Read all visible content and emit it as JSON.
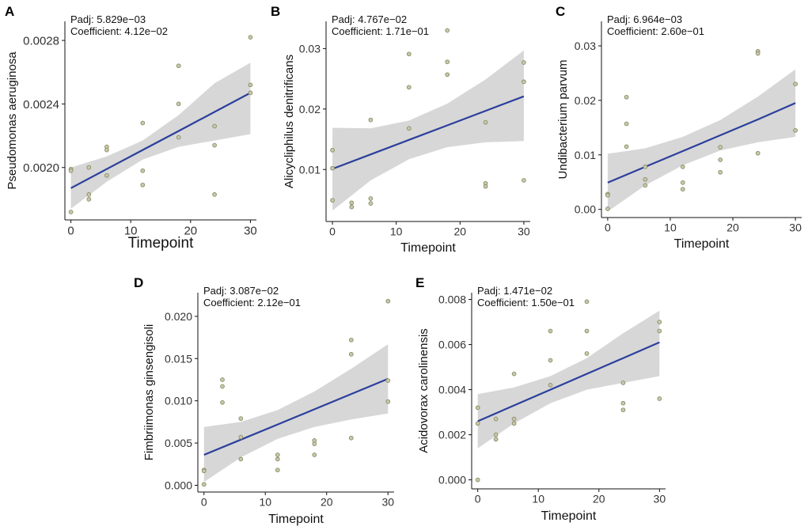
{
  "figure": {
    "colors": {
      "ribbon": "#d3d3d3",
      "line": "#2b3f9c",
      "point_fill": "#c9c9a8",
      "point_stroke": "#8a8a6a",
      "axis": "#111111"
    }
  },
  "chart_data": [
    {
      "panel": "A",
      "type": "scatter",
      "title": "",
      "xlabel": "Timepoint",
      "ylabel": "Pseudomonas aeruginosa",
      "xlim": [
        -1,
        31
      ],
      "ylim": [
        0.00167,
        0.00292
      ],
      "xticks": [
        0,
        10,
        20,
        30
      ],
      "xtick_labels": [
        "0",
        "10",
        "20",
        "30"
      ],
      "yticks": [
        0.002,
        0.0024,
        0.0028
      ],
      "ytick_labels": [
        "0.0020",
        "0.0024",
        "0.0028"
      ],
      "annotations": [
        "Padj: 5.829e−03",
        "Coefficient: 4.12e−02"
      ],
      "points": [
        [
          0,
          0.00199
        ],
        [
          0,
          0.00198
        ],
        [
          0,
          0.00172
        ],
        [
          3,
          0.002
        ],
        [
          3,
          0.00183
        ],
        [
          3,
          0.0018
        ],
        [
          6,
          0.00213
        ],
        [
          6,
          0.00211
        ],
        [
          6,
          0.00195
        ],
        [
          12,
          0.00228
        ],
        [
          12,
          0.00198
        ],
        [
          12,
          0.00189
        ],
        [
          18,
          0.00264
        ],
        [
          18,
          0.0024
        ],
        [
          18,
          0.00219
        ],
        [
          24,
          0.00226
        ],
        [
          24,
          0.00214
        ],
        [
          24,
          0.00183
        ],
        [
          30,
          0.00282
        ],
        [
          30,
          0.00252
        ],
        [
          30,
          0.00247
        ]
      ],
      "fit_x": [
        0,
        6,
        12,
        18,
        24,
        30
      ],
      "fit_y": [
        0.00187,
        0.00199,
        0.00211,
        0.00223,
        0.00235,
        0.00247
      ],
      "ci_lower": [
        0.00174,
        0.00191,
        0.00205,
        0.00213,
        0.00217,
        0.00221
      ],
      "ci_upper": [
        0.002,
        0.00207,
        0.00217,
        0.00233,
        0.00253,
        0.00266
      ]
    },
    {
      "panel": "B",
      "type": "scatter",
      "title": "",
      "xlabel": "Timepoint",
      "ylabel": "Alicycliphilus denitrificans",
      "xlim": [
        -1,
        31
      ],
      "ylim": [
        0.0014,
        0.0345
      ],
      "xticks": [
        0,
        10,
        20,
        30
      ],
      "xtick_labels": [
        "0",
        "10",
        "20",
        "30"
      ],
      "yticks": [
        0.01,
        0.02,
        0.03
      ],
      "ytick_labels": [
        "0.01",
        "0.02",
        "0.03"
      ],
      "annotations": [
        "Padj: 4.767e−02",
        "Coefficient: 1.71e−01"
      ],
      "points": [
        [
          0,
          0.0132
        ],
        [
          0,
          0.0102
        ],
        [
          0,
          0.0049
        ],
        [
          3,
          0.0045
        ],
        [
          3,
          0.0038
        ],
        [
          6,
          0.0182
        ],
        [
          6,
          0.0052
        ],
        [
          6,
          0.0044
        ],
        [
          12,
          0.0291
        ],
        [
          12,
          0.0236
        ],
        [
          12,
          0.0168
        ],
        [
          18,
          0.033
        ],
        [
          18,
          0.0278
        ],
        [
          18,
          0.0257
        ],
        [
          24,
          0.0178
        ],
        [
          24,
          0.0077
        ],
        [
          24,
          0.0072
        ],
        [
          30,
          0.0277
        ],
        [
          30,
          0.0245
        ],
        [
          30,
          0.0082
        ]
      ],
      "fit_x": [
        0,
        6,
        12,
        18,
        24,
        30
      ],
      "fit_y": [
        0.0101,
        0.0125,
        0.0149,
        0.0173,
        0.0197,
        0.0221
      ],
      "ci_lower": [
        0.0032,
        0.0082,
        0.0117,
        0.0137,
        0.0145,
        0.0147
      ],
      "ci_upper": [
        0.0169,
        0.0168,
        0.0181,
        0.0209,
        0.0249,
        0.0297
      ]
    },
    {
      "panel": "C",
      "type": "scatter",
      "title": "",
      "xlabel": "Timepoint",
      "ylabel": "Undibacterium parvum",
      "xlim": [
        -1,
        31
      ],
      "ylim": [
        -0.0015,
        0.0345
      ],
      "xticks": [
        0,
        10,
        20,
        30
      ],
      "xtick_labels": [
        "0",
        "10",
        "20",
        "30"
      ],
      "yticks": [
        0,
        0.01,
        0.02,
        0.03
      ],
      "ytick_labels": [
        "0.00",
        "0.01",
        "0.02",
        "0.03"
      ],
      "annotations": [
        "Padj: 6.964e−03",
        "Coefficient: 2.60e−01"
      ],
      "points": [
        [
          0,
          0.0028
        ],
        [
          0,
          0.0026
        ],
        [
          0,
          0.0001
        ],
        [
          3,
          0.0206
        ],
        [
          3,
          0.0157
        ],
        [
          3,
          0.0115
        ],
        [
          6,
          0.0078
        ],
        [
          6,
          0.0055
        ],
        [
          6,
          0.0044
        ],
        [
          12,
          0.0078
        ],
        [
          12,
          0.0049
        ],
        [
          12,
          0.0037
        ],
        [
          18,
          0.0114
        ],
        [
          18,
          0.0091
        ],
        [
          18,
          0.0068
        ],
        [
          24,
          0.029
        ],
        [
          24,
          0.0286
        ],
        [
          24,
          0.0103
        ],
        [
          30,
          0.023
        ],
        [
          30,
          0.0145
        ]
      ],
      "fit_x": [
        0,
        6,
        12,
        18,
        24,
        30
      ],
      "fit_y": [
        0.0049,
        0.0078,
        0.0107,
        0.0136,
        0.0165,
        0.0195
      ],
      "ci_lower": [
        -0.0004,
        0.0044,
        0.0081,
        0.0108,
        0.0123,
        0.0133
      ],
      "ci_upper": [
        0.0102,
        0.0112,
        0.0133,
        0.0164,
        0.0207,
        0.0257
      ]
    },
    {
      "panel": "D",
      "type": "scatter",
      "title": "",
      "xlabel": "Timepoint",
      "ylabel": "Fimbriimonas ginsengisoli",
      "xlim": [
        -1,
        31
      ],
      "ylim": [
        -0.0008,
        0.0228
      ],
      "xticks": [
        0,
        10,
        20,
        30
      ],
      "xtick_labels": [
        "0",
        "10",
        "20",
        "30"
      ],
      "yticks": [
        0,
        0.005,
        0.01,
        0.015,
        0.02
      ],
      "ytick_labels": [
        "0.000",
        "0.005",
        "0.010",
        "0.015",
        "0.020"
      ],
      "annotations": [
        "Padj: 3.087e−02",
        "Coefficient: 2.12e−01"
      ],
      "points": [
        [
          0,
          0.0018
        ],
        [
          0,
          0.0017
        ],
        [
          0,
          0.0001
        ],
        [
          3,
          0.0125
        ],
        [
          3,
          0.0117
        ],
        [
          3,
          0.0098
        ],
        [
          6,
          0.0079
        ],
        [
          6,
          0.0057
        ],
        [
          6,
          0.0031
        ],
        [
          12,
          0.0036
        ],
        [
          12,
          0.0031
        ],
        [
          12,
          0.0018
        ],
        [
          18,
          0.0053
        ],
        [
          18,
          0.0049
        ],
        [
          18,
          0.0036
        ],
        [
          24,
          0.0172
        ],
        [
          24,
          0.0155
        ],
        [
          24,
          0.0056
        ],
        [
          30,
          0.0218
        ],
        [
          30,
          0.0124
        ],
        [
          30,
          0.0099
        ]
      ],
      "fit_x": [
        0,
        6,
        12,
        18,
        24,
        30
      ],
      "fit_y": [
        0.0036,
        0.0054,
        0.0072,
        0.009,
        0.0108,
        0.0126
      ],
      "ci_lower": [
        0.0004,
        0.0033,
        0.0055,
        0.0069,
        0.0078,
        0.0085
      ],
      "ci_upper": [
        0.0069,
        0.0075,
        0.0089,
        0.0111,
        0.0138,
        0.0167
      ]
    },
    {
      "panel": "E",
      "type": "scatter",
      "title": "",
      "xlabel": "Timepoint",
      "ylabel": "Acidovorax carolinensis",
      "xlim": [
        -1,
        31
      ],
      "ylim": [
        -0.0004,
        0.0083
      ],
      "xticks": [
        0,
        10,
        20,
        30
      ],
      "xtick_labels": [
        "0",
        "10",
        "20",
        "30"
      ],
      "yticks": [
        0,
        0.002,
        0.004,
        0.006,
        0.008
      ],
      "ytick_labels": [
        "0.000",
        "0.002",
        "0.004",
        "0.006",
        "0.008"
      ],
      "annotations": [
        "Padj: 1.471e−02",
        "Coefficient: 1.50e−01"
      ],
      "points": [
        [
          0,
          0.0032
        ],
        [
          0,
          0.0025
        ],
        [
          0,
          0.0
        ],
        [
          3,
          0.0027
        ],
        [
          3,
          0.002
        ],
        [
          3,
          0.0018
        ],
        [
          6,
          0.0047
        ],
        [
          6,
          0.0027
        ],
        [
          6,
          0.0025
        ],
        [
          12,
          0.0066
        ],
        [
          12,
          0.0053
        ],
        [
          12,
          0.0042
        ],
        [
          18,
          0.0079
        ],
        [
          18,
          0.0066
        ],
        [
          18,
          0.0056
        ],
        [
          24,
          0.0043
        ],
        [
          24,
          0.0034
        ],
        [
          24,
          0.0031
        ],
        [
          30,
          0.007
        ],
        [
          30,
          0.0066
        ],
        [
          30,
          0.0036
        ]
      ],
      "fit_x": [
        0,
        6,
        12,
        18,
        24,
        30
      ],
      "fit_y": [
        0.0026,
        0.0033,
        0.004,
        0.0047,
        0.0054,
        0.0061
      ],
      "ci_lower": [
        0.0014,
        0.0025,
        0.0034,
        0.004,
        0.0043,
        0.0046
      ],
      "ci_upper": [
        0.0038,
        0.0041,
        0.0046,
        0.0054,
        0.0065,
        0.0075
      ]
    }
  ]
}
